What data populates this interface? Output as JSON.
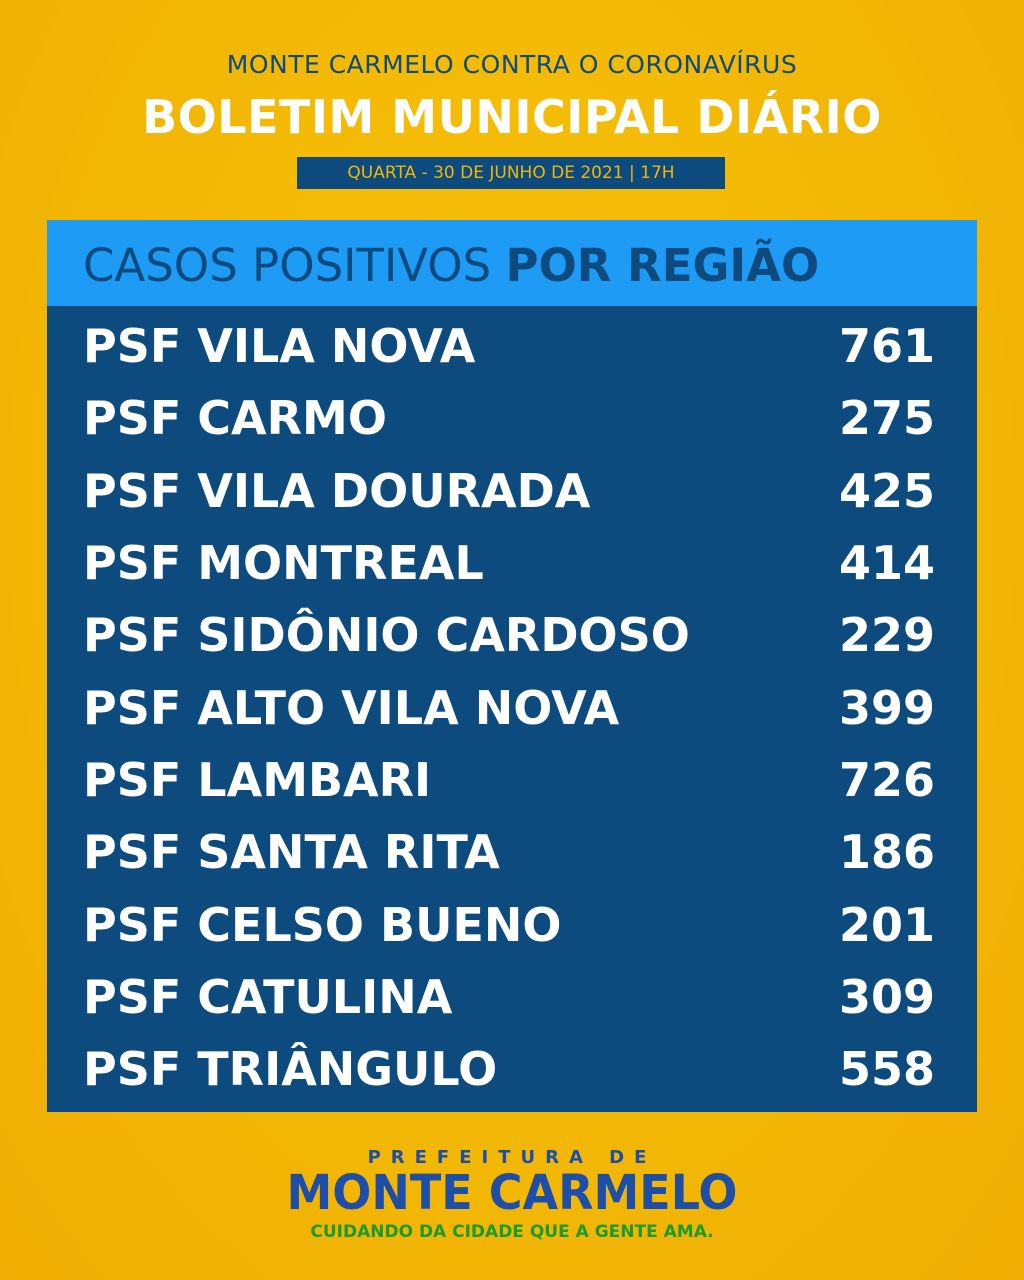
{
  "header": {
    "subtitle": "MONTE CARMELO CONTRA O CORONAVÍRUS",
    "title": "BOLETIM MUNICIPAL DIÁRIO",
    "date": "QUARTA - 30 DE JUNHO DE 2021 | 17H"
  },
  "panel": {
    "heading_light": "CASOS POSITIVOS ",
    "heading_bold": "POR REGIÃO",
    "rows": [
      {
        "region": "PSF VILA NOVA",
        "cases": "761"
      },
      {
        "region": "PSF CARMO",
        "cases": "275"
      },
      {
        "region": "PSF VILA DOURADA",
        "cases": "425"
      },
      {
        "region": "PSF MONTREAL",
        "cases": "414"
      },
      {
        "region": "PSF SIDÔNIO CARDOSO",
        "cases": "229"
      },
      {
        "region": "PSF ALTO VILA NOVA",
        "cases": "399"
      },
      {
        "region": "PSF LAMBARI",
        "cases": "726"
      },
      {
        "region": "PSF SANTA RITA",
        "cases": "186"
      },
      {
        "region": "PSF CELSO BUENO",
        "cases": "201"
      },
      {
        "region": "PSF CATULINA",
        "cases": "309"
      },
      {
        "region": "PSF TRIÂNGULO",
        "cases": "558"
      }
    ]
  },
  "footer": {
    "line1": "PREFEITURA DE",
    "line2": "MONTE CARMELO",
    "slogan": "CUIDANDO DA CIDADE QUE A GENTE AMA."
  },
  "colors": {
    "background": "#f2b705",
    "panel": "#0d4a7e",
    "panel_header": "#1e9bf5",
    "slogan": "#1a9b2e"
  }
}
